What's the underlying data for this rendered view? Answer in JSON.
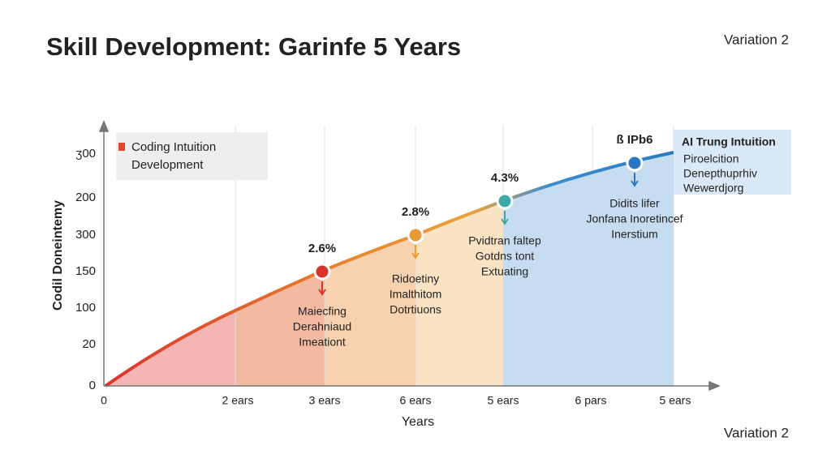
{
  "header": {
    "title": "Skill Development: Garinfe 5 Years",
    "variation_top": "Variation 2",
    "variation_bottom": "Variation 2"
  },
  "y_axis": {
    "label": "Codil Doneintemy",
    "tick_labels": [
      "ʒ00",
      "200",
      "300",
      "150",
      "100",
      "20",
      "0"
    ]
  },
  "x_axis": {
    "label": "Years",
    "tick_labels": [
      "0",
      "2 ears",
      "3 ears",
      "6 ears",
      "5 ears",
      "6 pars",
      "5 ears"
    ]
  },
  "legend_left": {
    "lines": [
      "Coding Intuition",
      "Development"
    ]
  },
  "legend_right": {
    "title": "AI Trung Intuition",
    "lines": [
      "Piroelcition",
      "Denepthuprhiv",
      "Wewerdjorg"
    ]
  },
  "points": [
    {
      "label": "2.6%",
      "notes": [
        "Maiecfing",
        "Derahniaud",
        "Imeationt"
      ]
    },
    {
      "label": "2.8%",
      "notes": [
        "Ridoetiny",
        "Imalthitom",
        "Dotrtiuons"
      ]
    },
    {
      "label": "4.3%",
      "notes": [
        "Pvidtran faltep",
        "Gotdns tont",
        "Extuating"
      ]
    },
    {
      "label": "ß IPb6",
      "notes": [
        "Didits lifer",
        "Jonfana Inoretincef",
        "Inerstium"
      ]
    }
  ]
}
